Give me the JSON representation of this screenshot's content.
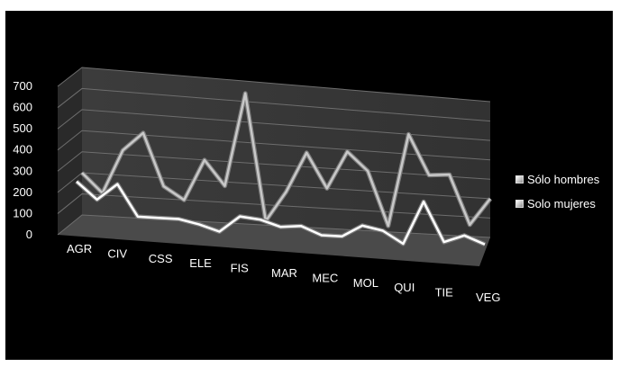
{
  "chart_data": {
    "type": "line",
    "style": "3d",
    "categories": [
      "AGR",
      "",
      "CIV",
      "",
      "CSS",
      "",
      "ELE",
      "",
      "FIS",
      "",
      "MAR",
      "",
      "MEC",
      "",
      "MOL",
      "",
      "QUI",
      "",
      "TIE",
      "",
      "VEG"
    ],
    "tick_labels": [
      "AGR",
      "CIV",
      "CSS",
      "ELE",
      "FIS",
      "MAR",
      "MEC",
      "MOL",
      "QUI",
      "TIE",
      "VEG"
    ],
    "yticks": [
      "700",
      "600",
      "500",
      "400",
      "300",
      "200",
      "100",
      "0"
    ],
    "ylim": [
      0,
      700
    ],
    "grid": true,
    "legend_position": "right",
    "series": [
      {
        "name": "Sólo hombres",
        "color": "#c8c8c8",
        "values": [
          200,
          110,
          320,
          410,
          160,
          100,
          300,
          180,
          640,
          20,
          170,
          370,
          200,
          390,
          300,
          30,
          500,
          300,
          310,
          60,
          200
        ]
      },
      {
        "name": "Solo mujeres",
        "color": "#ffffff",
        "values": [
          210,
          130,
          210,
          60,
          60,
          60,
          40,
          10,
          90,
          80,
          50,
          60,
          20,
          20,
          80,
          60,
          0,
          220,
          20,
          60,
          20
        ]
      }
    ]
  }
}
